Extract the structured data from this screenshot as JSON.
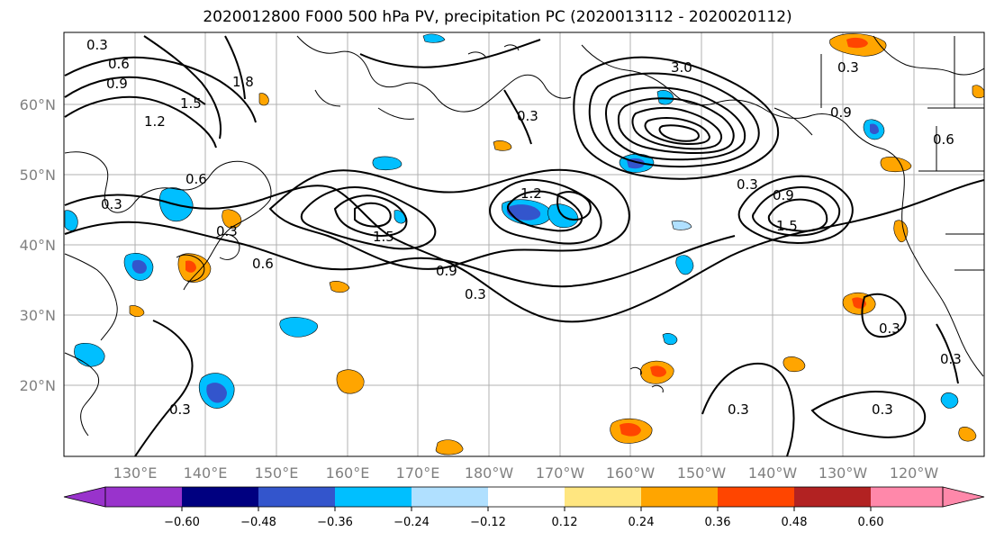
{
  "title": "2020012800 F000 500 hPa PV, precipitation PC (2020013112 - 2020020112)",
  "map": {
    "lat_labels": [
      "20°N",
      "30°N",
      "40°N",
      "50°N",
      "60°N"
    ],
    "lon_labels": [
      "130°E",
      "140°E",
      "150°E",
      "160°E",
      "170°E",
      "180°W",
      "170°W",
      "160°W",
      "150°W",
      "140°W",
      "130°W",
      "120°W"
    ],
    "contour_labels": [
      "0.3",
      "0.6",
      "0.9",
      "1.2",
      "1.5",
      "1.8",
      "3.0"
    ]
  },
  "colorbar": {
    "ticks": [
      "−0.60",
      "−0.48",
      "−0.36",
      "−0.24",
      "−0.12",
      "0.12",
      "0.24",
      "0.36",
      "0.48",
      "0.60"
    ],
    "colors": [
      "#9933cc",
      "#000080",
      "#3355cc",
      "#00bfff",
      "#b0e0ff",
      "#ffffff",
      "#ffe680",
      "#ffa500",
      "#ff4500",
      "#b22222",
      "#ff88aa"
    ]
  }
}
